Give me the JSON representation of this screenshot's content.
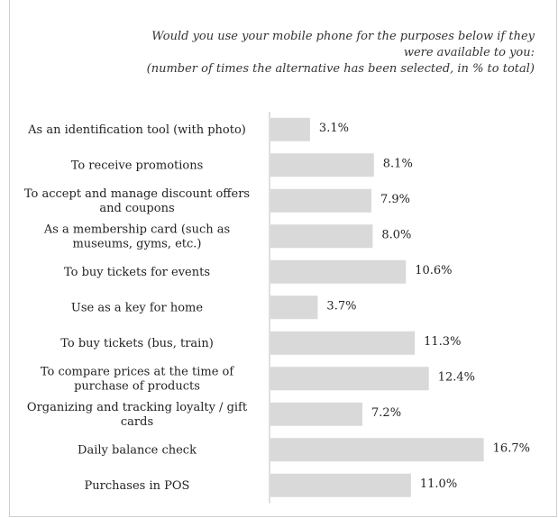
{
  "title": {
    "line1": "Would you use your mobile phone for the purposes below if they",
    "line2": "were available to you:",
    "line3": "(number of times the alternative has been selected, in % to total)"
  },
  "chart_data": {
    "type": "bar",
    "orientation": "horizontal",
    "title": "Would you use your mobile phone for the purposes below if they were available to you: (number of times the alternative has been selected, in % to total)",
    "categories": [
      [
        "As an identification tool (with photo)"
      ],
      [
        "To receive promotions"
      ],
      [
        "To accept and manage discount offers",
        "and coupons"
      ],
      [
        "As a membership card (such as",
        "museums, gyms, etc.)"
      ],
      [
        "To buy tickets for events"
      ],
      [
        "Use as a key for home"
      ],
      [
        "To buy tickets (bus, train)"
      ],
      [
        "To compare prices at the time of",
        "purchase of products"
      ],
      [
        "Organizing and tracking loyalty / gift",
        "cards"
      ],
      [
        "Daily balance check"
      ],
      [
        "Purchases in POS"
      ]
    ],
    "values": [
      3.1,
      8.1,
      7.9,
      8.0,
      10.6,
      3.7,
      11.3,
      12.4,
      7.2,
      16.7,
      11.0
    ],
    "labels": [
      "3.1%",
      "8.1%",
      "7.9%",
      "8.0%",
      "10.6%",
      "3.7%",
      "11.3%",
      "12.4%",
      "7.2%",
      "16.7%",
      "11.0%"
    ],
    "xlim": [
      0,
      17.5
    ],
    "bar_color": "#d9d9d9",
    "axis_color": "#bfbfbf",
    "grid": false,
    "legend": "none"
  }
}
